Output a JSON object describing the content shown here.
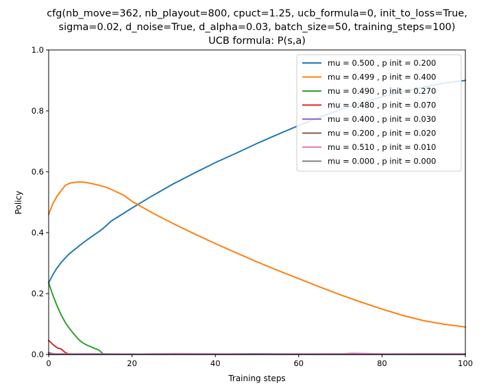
{
  "chart_data": {
    "type": "line",
    "title_lines": [
      "cfg(nb_move=362, nb_playout=800, cpuct=1.25, ucb_formula=0, init_to_loss=True,",
      "sigma=0.02, d_noise=True, d_alpha=0.03, batch_size=50, training_steps=100)",
      "UCB formula: P(s,a)"
    ],
    "xlabel": "Training steps",
    "ylabel": "Policy",
    "xlim": [
      0,
      100
    ],
    "ylim": [
      0,
      1.0
    ],
    "xticks": [
      "0",
      "20",
      "40",
      "60",
      "80",
      "100"
    ],
    "yticks": [
      "0.0",
      "0.2",
      "0.4",
      "0.6",
      "0.8",
      "1.0"
    ],
    "grid": false,
    "legend_position": "top-right",
    "series": [
      {
        "name": "mu = 0.500 , p init = 0.200",
        "color": "#1f77b4",
        "x": [
          0,
          1,
          2,
          3,
          4,
          5,
          6,
          8,
          10,
          12,
          13,
          15,
          20,
          25,
          30,
          35,
          40,
          45,
          50,
          55,
          60,
          65,
          70,
          75,
          80,
          85,
          90,
          95,
          100
        ],
        "y": [
          0.235,
          0.262,
          0.284,
          0.302,
          0.317,
          0.331,
          0.342,
          0.364,
          0.384,
          0.403,
          0.413,
          0.438,
          0.481,
          0.522,
          0.561,
          0.596,
          0.63,
          0.661,
          0.693,
          0.723,
          0.752,
          0.779,
          0.804,
          0.826,
          0.846,
          0.863,
          0.878,
          0.891,
          0.9
        ]
      },
      {
        "name": "mu = 0.499 , p init = 0.400",
        "color": "#ff7f0e",
        "x": [
          0,
          1,
          2,
          3,
          4,
          5,
          6,
          7,
          8,
          9,
          10,
          12,
          14,
          16,
          18,
          20,
          25,
          30,
          35,
          40,
          45,
          50,
          55,
          60,
          65,
          70,
          75,
          80,
          85,
          90,
          95,
          100
        ],
        "y": [
          0.46,
          0.495,
          0.52,
          0.538,
          0.555,
          0.562,
          0.565,
          0.566,
          0.566,
          0.565,
          0.562,
          0.556,
          0.548,
          0.536,
          0.523,
          0.503,
          0.464,
          0.429,
          0.396,
          0.364,
          0.334,
          0.304,
          0.276,
          0.249,
          0.222,
          0.196,
          0.172,
          0.149,
          0.128,
          0.111,
          0.099,
          0.09
        ]
      },
      {
        "name": "mu = 0.490 , p init = 0.270",
        "color": "#2ca02c",
        "x": [
          0,
          1,
          2,
          3,
          4,
          5,
          6,
          7,
          8,
          9,
          10,
          11,
          12,
          13,
          14,
          20,
          30,
          40,
          50,
          60,
          70,
          80,
          90,
          100
        ],
        "y": [
          0.235,
          0.195,
          0.16,
          0.13,
          0.105,
          0.085,
          0.068,
          0.052,
          0.04,
          0.032,
          0.026,
          0.02,
          0.015,
          0.003,
          0.001,
          0.001,
          0.002,
          0.001,
          0.002,
          0.001,
          0.002,
          0.001,
          0.002,
          0.001
        ]
      },
      {
        "name": "mu = 0.480 , p init = 0.070",
        "color": "#d62728",
        "x": [
          0,
          1,
          2,
          3,
          4,
          5,
          10,
          20,
          30,
          40,
          50,
          60,
          70,
          80,
          90,
          100
        ],
        "y": [
          0.046,
          0.033,
          0.022,
          0.018,
          0.006,
          0.001,
          0.001,
          0.001,
          0.001,
          0.001,
          0.001,
          0.001,
          0.001,
          0.001,
          0.001,
          0.001
        ]
      },
      {
        "name": "mu = 0.400 , p init = 0.030",
        "color": "#9467bd",
        "x": [
          0,
          1,
          2,
          4,
          10,
          30,
          50,
          70,
          100
        ],
        "y": [
          0.006,
          0.003,
          0.001,
          0.001,
          0.002,
          0.001,
          0.002,
          0.001,
          0.002
        ]
      },
      {
        "name": "mu = 0.200 , p init = 0.020",
        "color": "#8c564b",
        "x": [
          0,
          1,
          2,
          4,
          20,
          40,
          60,
          80,
          100
        ],
        "y": [
          0.004,
          0.002,
          0.001,
          0.001,
          0.001,
          0.001,
          0.001,
          0.001,
          0.001
        ]
      },
      {
        "name": "mu = 0.510 , p init = 0.010",
        "color": "#e377c2",
        "x": [
          0,
          10,
          20,
          30,
          40,
          50,
          60,
          70,
          73,
          80,
          90,
          100
        ],
        "y": [
          0.002,
          0.002,
          0.001,
          0.003,
          0.002,
          0.001,
          0.002,
          0.002,
          0.004,
          0.002,
          0.002,
          0.002
        ]
      },
      {
        "name": "mu = 0.000 , p init = 0.000",
        "color": "#7f7f7f",
        "x": [
          0,
          100
        ],
        "y": [
          0.0,
          0.0
        ]
      }
    ]
  }
}
